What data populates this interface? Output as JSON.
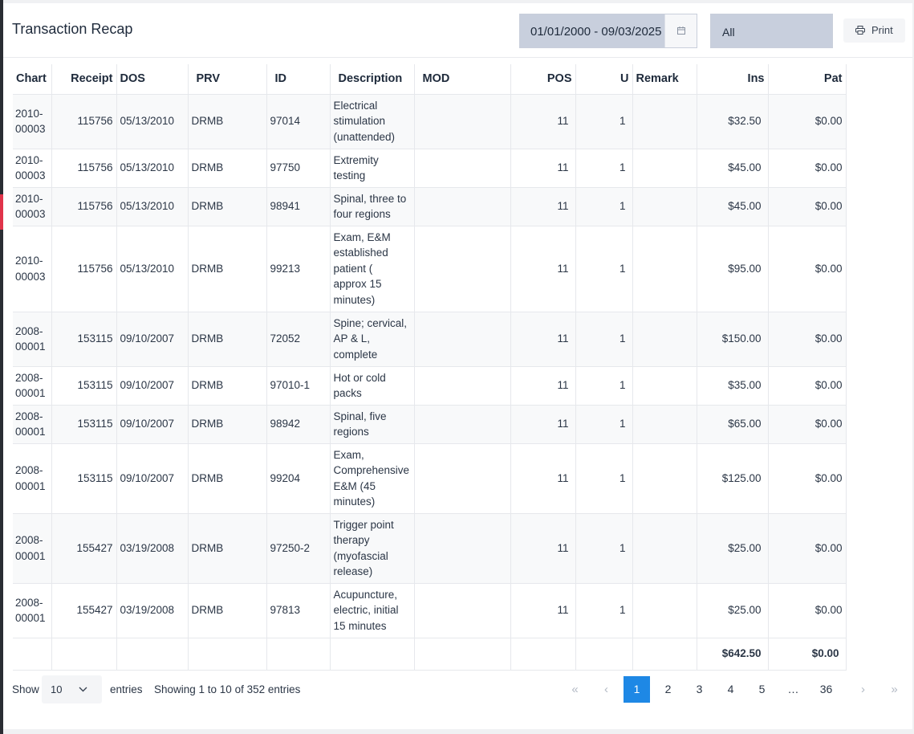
{
  "header": {
    "title": "Transaction Recap",
    "date_range": "01/01/2000 - 09/03/2025",
    "filter_value": "All",
    "print_label": "Print"
  },
  "table": {
    "columns": [
      "Chart",
      "Receipt",
      "DOS",
      "PRV",
      "ID",
      "Description",
      "MOD",
      "POS",
      "U",
      "Remark",
      "Ins",
      "Pat"
    ],
    "rows": [
      {
        "chart_a": "2010-",
        "chart_b": "00003",
        "receipt": "115756",
        "dos": "05/13/2010",
        "prv": "DRMB",
        "id": "97014",
        "desc": [
          "Electrical",
          "stimulation",
          "(unattended)"
        ],
        "mod": "",
        "pos": "11",
        "u": "1",
        "remark": "",
        "ins": "$32.50",
        "pat": "$0.00"
      },
      {
        "chart_a": "2010-",
        "chart_b": "00003",
        "receipt": "115756",
        "dos": "05/13/2010",
        "prv": "DRMB",
        "id": "97750",
        "desc": [
          "Extremity",
          "testing"
        ],
        "mod": "",
        "pos": "11",
        "u": "1",
        "remark": "",
        "ins": "$45.00",
        "pat": "$0.00"
      },
      {
        "chart_a": "2010-",
        "chart_b": "00003",
        "receipt": "115756",
        "dos": "05/13/2010",
        "prv": "DRMB",
        "id": "98941",
        "desc": [
          "Spinal, three to",
          "four regions"
        ],
        "mod": "",
        "pos": "11",
        "u": "1",
        "remark": "",
        "ins": "$45.00",
        "pat": "$0.00"
      },
      {
        "chart_a": "2010-",
        "chart_b": "00003",
        "receipt": "115756",
        "dos": "05/13/2010",
        "prv": "DRMB",
        "id": "99213",
        "desc": [
          "Exam, E&M",
          "established",
          "patient (",
          "approx 15",
          "minutes)"
        ],
        "mod": "",
        "pos": "11",
        "u": "1",
        "remark": "",
        "ins": "$95.00",
        "pat": "$0.00"
      },
      {
        "chart_a": "2008-",
        "chart_b": "00001",
        "receipt": "153115",
        "dos": "09/10/2007",
        "prv": "DRMB",
        "id": "72052",
        "desc": [
          "Spine; cervical,",
          "AP & L,",
          "complete"
        ],
        "mod": "",
        "pos": "11",
        "u": "1",
        "remark": "",
        "ins": "$150.00",
        "pat": "$0.00"
      },
      {
        "chart_a": "2008-",
        "chart_b": "00001",
        "receipt": "153115",
        "dos": "09/10/2007",
        "prv": "DRMB",
        "id": "97010-1",
        "desc": [
          "Hot or cold",
          "packs"
        ],
        "mod": "",
        "pos": "11",
        "u": "1",
        "remark": "",
        "ins": "$35.00",
        "pat": "$0.00"
      },
      {
        "chart_a": "2008-",
        "chart_b": "00001",
        "receipt": "153115",
        "dos": "09/10/2007",
        "prv": "DRMB",
        "id": "98942",
        "desc": [
          "Spinal, five",
          "regions"
        ],
        "mod": "",
        "pos": "11",
        "u": "1",
        "remark": "",
        "ins": "$65.00",
        "pat": "$0.00"
      },
      {
        "chart_a": "2008-",
        "chart_b": "00001",
        "receipt": "153115",
        "dos": "09/10/2007",
        "prv": "DRMB",
        "id": "99204",
        "desc": [
          "Exam,",
          "Comprehensive",
          "E&M (45",
          "minutes)"
        ],
        "mod": "",
        "pos": "11",
        "u": "1",
        "remark": "",
        "ins": "$125.00",
        "pat": "$0.00"
      },
      {
        "chart_a": "2008-",
        "chart_b": "00001",
        "receipt": "155427",
        "dos": "03/19/2008",
        "prv": "DRMB",
        "id": "97250-2",
        "desc": [
          "Trigger point",
          "therapy",
          "(myofascial",
          "release)"
        ],
        "mod": "",
        "pos": "11",
        "u": "1",
        "remark": "",
        "ins": "$25.00",
        "pat": "$0.00"
      },
      {
        "chart_a": "2008-",
        "chart_b": "00001",
        "receipt": "155427",
        "dos": "03/19/2008",
        "prv": "DRMB",
        "id": "97813",
        "desc": [
          "Acupuncture,",
          "electric, initial",
          "15 minutes"
        ],
        "mod": "",
        "pos": "11",
        "u": "1",
        "remark": "",
        "ins": "$25.00",
        "pat": "$0.00"
      }
    ],
    "totals": {
      "ins": "$642.50",
      "pat": "$0.00"
    }
  },
  "footer": {
    "show_label": "Show",
    "page_length": "10",
    "entries_label": "entries",
    "info": "Showing 1 to 10 of 352 entries",
    "pager": {
      "first": "«",
      "prev": "‹",
      "pages": [
        "1",
        "2",
        "3",
        "4",
        "5",
        "…",
        "36"
      ],
      "next": "›",
      "last": "»",
      "active_page": "1"
    }
  },
  "icons": {
    "calendar": "calendar-icon",
    "printer": "printer-icon",
    "dropdown": "chevron-down-icon"
  },
  "colors": {
    "accent": "#1e88e5",
    "input_bg": "#c8cfdd",
    "sidebar_marker": "#e0344a"
  }
}
